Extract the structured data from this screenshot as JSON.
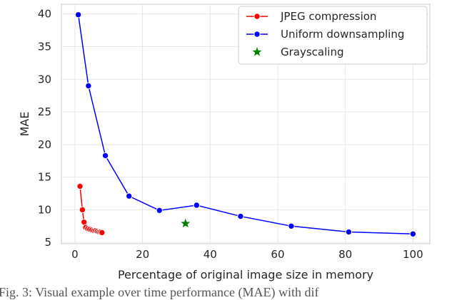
{
  "chart_data": {
    "type": "line",
    "title": "",
    "xlabel": "Percentage of original image size in memory",
    "ylabel": "MAE",
    "xlim": [
      -4,
      105
    ],
    "ylim": [
      4.8,
      41.5
    ],
    "xticks": [
      0,
      20,
      40,
      60,
      80,
      100
    ],
    "yticks": [
      5,
      10,
      15,
      20,
      25,
      30,
      35,
      40
    ],
    "xtick_labels": [
      "0",
      "20",
      "40",
      "60",
      "80",
      "100"
    ],
    "ytick_labels": [
      "5",
      "10",
      "15",
      "20",
      "25",
      "30",
      "35",
      "40"
    ],
    "grid": true,
    "legend": "top-right",
    "series": [
      {
        "name": "JPEG compression",
        "color": "#ff0000",
        "marker": "circle",
        "x": [
          1.5,
          2.2,
          2.7,
          3.2,
          3.8,
          4.4,
          5.0,
          5.6,
          6.1,
          6.6,
          7.1,
          7.6,
          8.0
        ],
        "y": [
          13.6,
          10.0,
          8.1,
          7.3,
          7.1,
          7.0,
          6.9,
          6.8,
          6.8,
          6.7,
          6.6,
          6.6,
          6.5
        ]
      },
      {
        "name": "Uniform downsampling",
        "color": "#0000ff",
        "marker": "circle",
        "x": [
          1,
          4,
          9,
          16,
          25,
          36,
          49,
          64,
          81,
          100
        ],
        "y": [
          39.9,
          29.0,
          18.3,
          12.1,
          9.9,
          10.7,
          9.0,
          7.5,
          6.6,
          6.3
        ]
      },
      {
        "name": "Grayscaling",
        "color": "#008000",
        "marker": "star",
        "x": [
          32.7
        ],
        "y": [
          7.9
        ]
      }
    ]
  },
  "caption": "Fig. 3: Visual example over time performance (MAE) with dif"
}
